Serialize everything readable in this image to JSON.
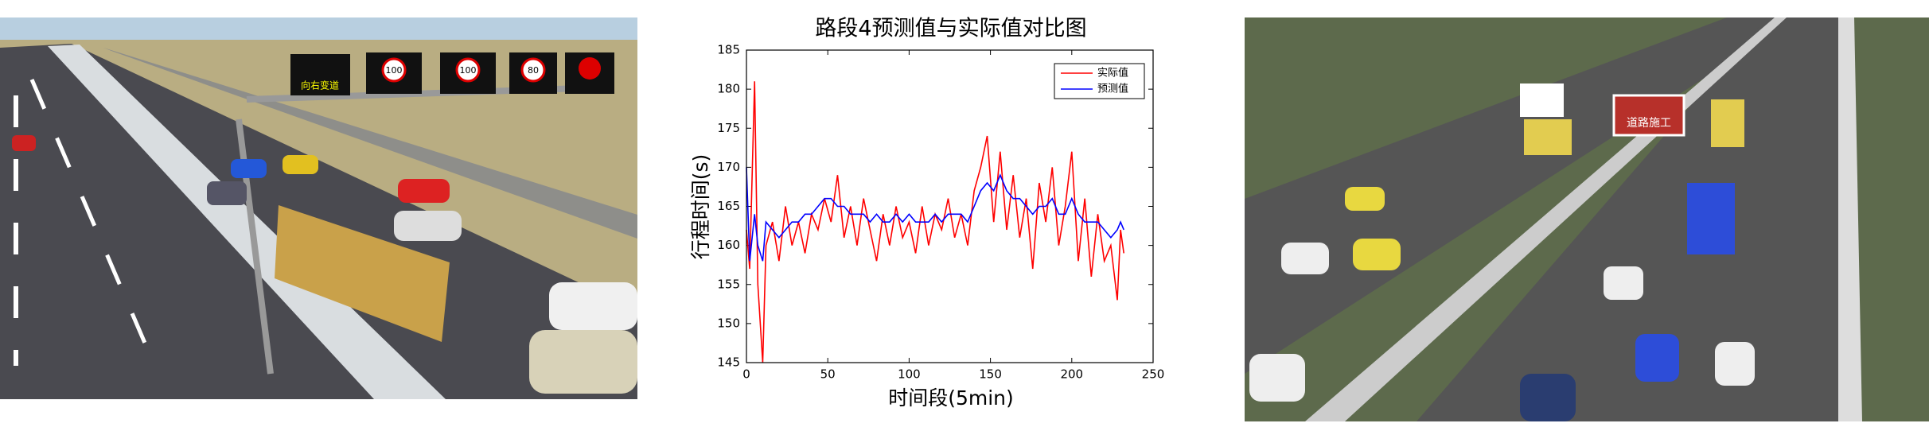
{
  "left_image": {
    "signs": [
      "向右变道",
      "100",
      "100",
      "80"
    ]
  },
  "right_image": {
    "signs": [
      "道路施工"
    ]
  },
  "chart_data": {
    "type": "line",
    "title": "路段4预测值与实际值对比图",
    "x_label": "时间段(5min)",
    "y_label": "行程时间(s)",
    "x": [
      0,
      2,
      5,
      7,
      10,
      12,
      16,
      20,
      24,
      28,
      32,
      36,
      40,
      44,
      48,
      52,
      56,
      60,
      64,
      68,
      72,
      76,
      80,
      84,
      88,
      92,
      96,
      100,
      104,
      108,
      112,
      116,
      120,
      124,
      128,
      132,
      136,
      140,
      144,
      148,
      152,
      156,
      160,
      164,
      168,
      172,
      176,
      180,
      184,
      188,
      192,
      196,
      200,
      204,
      208,
      212,
      216,
      220,
      224,
      228,
      230,
      232
    ],
    "series": [
      {
        "name": "实际值",
        "color": "#ff0000",
        "values": [
          162,
          157,
          181,
          155,
          145,
          160,
          163,
          158,
          165,
          160,
          163,
          159,
          164,
          162,
          166,
          163,
          169,
          161,
          165,
          160,
          166,
          162,
          158,
          164,
          160,
          165,
          161,
          163,
          159,
          165,
          160,
          164,
          162,
          166,
          161,
          164,
          160,
          167,
          170,
          174,
          163,
          172,
          162,
          169,
          161,
          166,
          157,
          168,
          163,
          170,
          160,
          165,
          172,
          158,
          166,
          156,
          164,
          158,
          160,
          153,
          162,
          159
        ]
      },
      {
        "name": "预测值",
        "color": "#0000ff",
        "values": [
          170,
          158,
          164,
          160,
          158,
          163,
          162,
          161,
          162,
          163,
          163,
          164,
          164,
          165,
          166,
          166,
          165,
          165,
          164,
          164,
          164,
          163,
          164,
          163,
          163,
          164,
          163,
          164,
          163,
          163,
          163,
          164,
          163,
          164,
          164,
          164,
          163,
          165,
          167,
          168,
          167,
          169,
          167,
          166,
          166,
          165,
          164,
          165,
          165,
          166,
          164,
          164,
          166,
          164,
          163,
          163,
          163,
          162,
          161,
          162,
          163,
          162
        ]
      }
    ],
    "xlim": [
      0,
      250
    ],
    "xticks": [
      0,
      50,
      100,
      150,
      200,
      250
    ],
    "ylim": [
      145,
      185
    ],
    "yticks": [
      145,
      150,
      155,
      160,
      165,
      170,
      175,
      180,
      185
    ],
    "legend": "upper right"
  }
}
